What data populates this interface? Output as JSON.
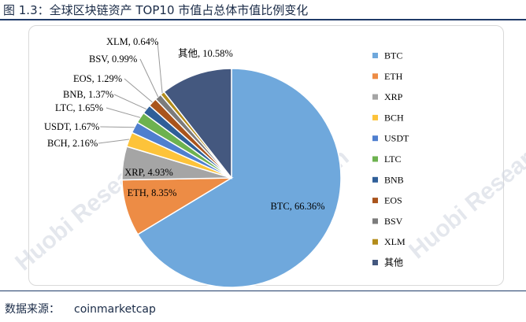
{
  "figure": {
    "title": "图 1.3：全球区块链资产 TOP10 市值占总体市值比例变化",
    "source_label": "数据来源：",
    "source_value": "coinmarketcap"
  },
  "watermark": {
    "text": "Huobi Research"
  },
  "chart_data": {
    "type": "pie",
    "title": "",
    "start_angle_deg": 0,
    "direction": "clockwise",
    "legend_position": "right",
    "slices": [
      {
        "name": "BTC",
        "value": 66.36,
        "label": "BTC, 66.36%",
        "color": "#6fa8dc"
      },
      {
        "name": "ETH",
        "value": 8.35,
        "label": "ETH, 8.35%",
        "color": "#ed8c45"
      },
      {
        "name": "XRP",
        "value": 4.93,
        "label": "XRP, 4.93%",
        "color": "#a5a5a5"
      },
      {
        "name": "BCH",
        "value": 2.16,
        "label": "BCH, 2.16%",
        "color": "#fdc33a"
      },
      {
        "name": "USDT",
        "value": 1.67,
        "label": "USDT, 1.67%",
        "color": "#4f7fcf"
      },
      {
        "name": "LTC",
        "value": 1.65,
        "label": "LTC, 1.65%",
        "color": "#6db24f"
      },
      {
        "name": "BNB",
        "value": 1.37,
        "label": "BNB, 1.37%",
        "color": "#2f5f99"
      },
      {
        "name": "EOS",
        "value": 1.29,
        "label": "EOS, 1.29%",
        "color": "#a9541c"
      },
      {
        "name": "BSV",
        "value": 0.99,
        "label": "BSV, 0.99%",
        "color": "#7c7c7c"
      },
      {
        "name": "XLM",
        "value": 0.64,
        "label": "XLM, 0.64%",
        "color": "#b38c1a"
      },
      {
        "name": "其他",
        "value": 10.58,
        "label": "其他, 10.58%",
        "color": "#44587f"
      }
    ]
  }
}
